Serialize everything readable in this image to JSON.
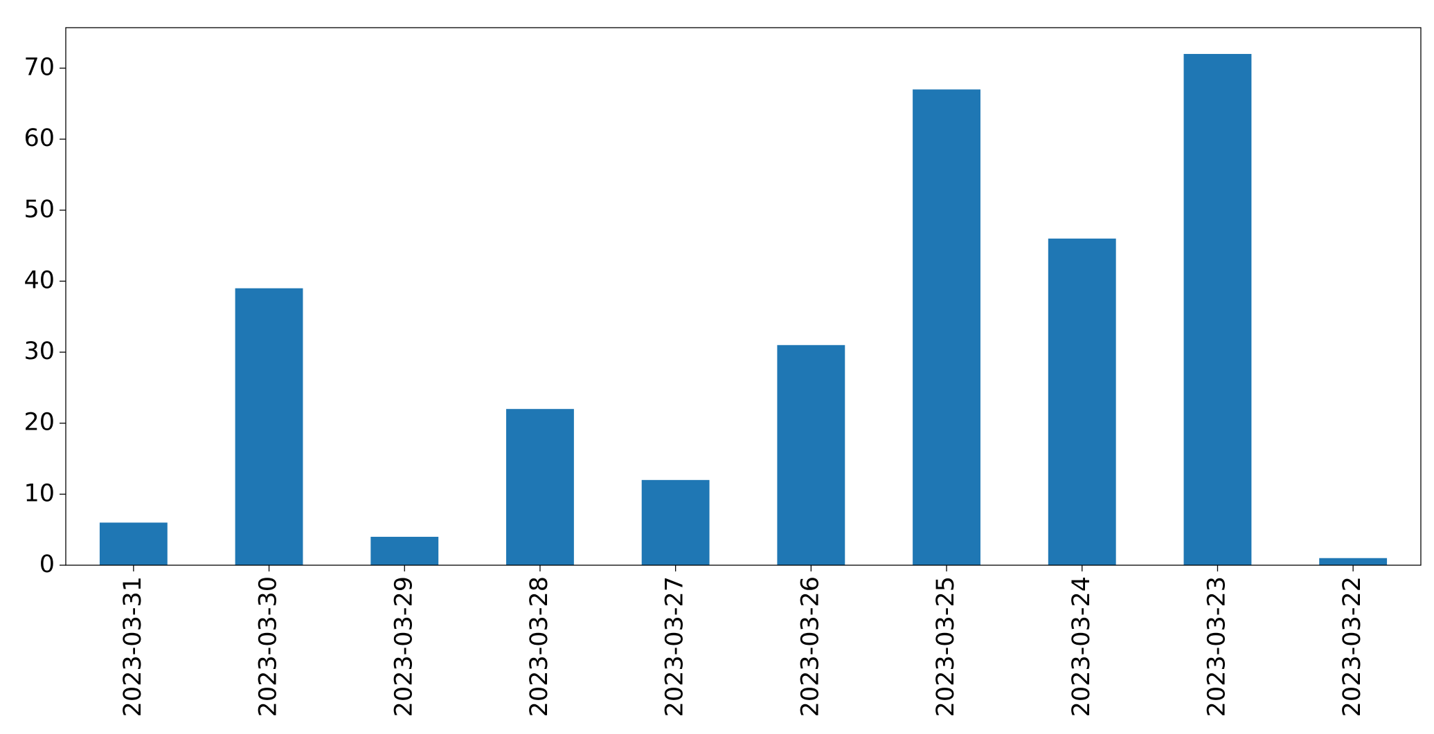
{
  "chart_data": {
    "type": "bar",
    "categories": [
      "2023-03-31",
      "2023-03-30",
      "2023-03-29",
      "2023-03-28",
      "2023-03-27",
      "2023-03-26",
      "2023-03-25",
      "2023-03-24",
      "2023-03-23",
      "2023-03-22"
    ],
    "values": [
      6,
      39,
      4,
      22,
      12,
      31,
      67,
      46,
      72,
      1
    ],
    "color": "#1f77b4",
    "ylim": [
      0,
      75.7
    ],
    "yticks": [
      0,
      10,
      20,
      30,
      40,
      50,
      60,
      70
    ],
    "grid": false
  }
}
